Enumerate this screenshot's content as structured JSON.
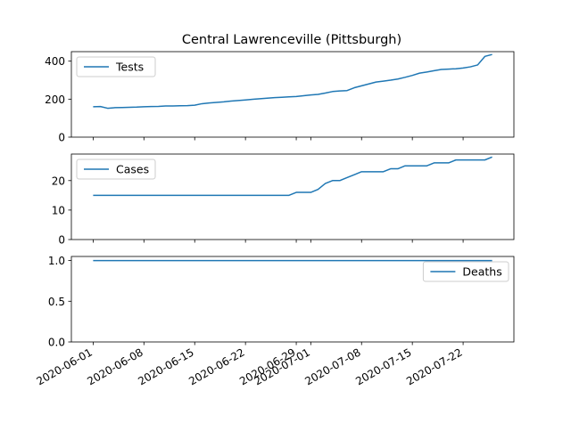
{
  "chart_data": {
    "type": "line",
    "title": "Central Lawrenceville (Pittsburgh)",
    "x_tick_labels": [
      "2020-06-01",
      "2020-06-08",
      "2020-06-15",
      "2020-06-22",
      "2020-06-29",
      "2020-07-01",
      "2020-07-08",
      "2020-07-15",
      "2020-07-22"
    ],
    "x_tick_dates": [
      "2020-06-01",
      "2020-06-08",
      "2020-06-15",
      "2020-06-22",
      "2020-06-29",
      "2020-07-01",
      "2020-07-08",
      "2020-07-15",
      "2020-07-22"
    ],
    "xlim": [
      "2020-05-29",
      "2020-07-29"
    ],
    "x": [
      "2020-06-01",
      "2020-06-02",
      "2020-06-03",
      "2020-06-04",
      "2020-06-05",
      "2020-06-06",
      "2020-06-07",
      "2020-06-08",
      "2020-06-09",
      "2020-06-10",
      "2020-06-11",
      "2020-06-12",
      "2020-06-13",
      "2020-06-14",
      "2020-06-15",
      "2020-06-16",
      "2020-06-17",
      "2020-06-18",
      "2020-06-19",
      "2020-06-20",
      "2020-06-21",
      "2020-06-22",
      "2020-06-23",
      "2020-06-24",
      "2020-06-25",
      "2020-06-26",
      "2020-06-27",
      "2020-06-28",
      "2020-06-29",
      "2020-06-30",
      "2020-07-01",
      "2020-07-02",
      "2020-07-03",
      "2020-07-04",
      "2020-07-05",
      "2020-07-06",
      "2020-07-07",
      "2020-07-08",
      "2020-07-09",
      "2020-07-10",
      "2020-07-11",
      "2020-07-12",
      "2020-07-13",
      "2020-07-14",
      "2020-07-15",
      "2020-07-16",
      "2020-07-17",
      "2020-07-18",
      "2020-07-19",
      "2020-07-20",
      "2020-07-21",
      "2020-07-22",
      "2020-07-23",
      "2020-07-24",
      "2020-07-25",
      "2020-07-26"
    ],
    "panels": [
      {
        "name": "Tests",
        "ylim": [
          0,
          450
        ],
        "yticks": [
          0,
          200,
          400
        ],
        "legend_position": "upper left",
        "values": [
          160,
          161,
          152,
          155,
          156,
          157,
          158,
          160,
          161,
          162,
          164,
          164,
          165,
          166,
          168,
          176,
          180,
          183,
          186,
          190,
          193,
          196,
          199,
          202,
          205,
          208,
          210,
          212,
          214,
          218,
          222,
          225,
          232,
          240,
          243,
          245,
          260,
          270,
          280,
          290,
          295,
          300,
          306,
          315,
          325,
          337,
          343,
          350,
          356,
          358,
          360,
          364,
          370,
          380,
          425,
          435
        ]
      },
      {
        "name": "Cases",
        "ylim": [
          0,
          29
        ],
        "yticks": [
          0,
          10,
          20
        ],
        "legend_position": "upper left",
        "values": [
          15,
          15,
          15,
          15,
          15,
          15,
          15,
          15,
          15,
          15,
          15,
          15,
          15,
          15,
          15,
          15,
          15,
          15,
          15,
          15,
          15,
          15,
          15,
          15,
          15,
          15,
          15,
          15,
          16,
          16,
          16,
          17,
          19,
          20,
          20,
          21,
          22,
          23,
          23,
          23,
          23,
          24,
          24,
          25,
          25,
          25,
          25,
          26,
          26,
          26,
          27,
          27,
          27,
          27,
          27,
          28
        ]
      },
      {
        "name": "Deaths",
        "ylim": [
          0,
          1.05
        ],
        "yticks": [
          0.0,
          0.5,
          1.0
        ],
        "y_tick_labels": [
          "0.0",
          "0.5",
          "1.0"
        ],
        "legend_position": "upper right",
        "values": [
          1,
          1,
          1,
          1,
          1,
          1,
          1,
          1,
          1,
          1,
          1,
          1,
          1,
          1,
          1,
          1,
          1,
          1,
          1,
          1,
          1,
          1,
          1,
          1,
          1,
          1,
          1,
          1,
          1,
          1,
          1,
          1,
          1,
          1,
          1,
          1,
          1,
          1,
          1,
          1,
          1,
          1,
          1,
          1,
          1,
          1,
          1,
          1,
          1,
          1,
          1,
          1,
          1,
          1,
          1,
          1
        ]
      }
    ]
  }
}
